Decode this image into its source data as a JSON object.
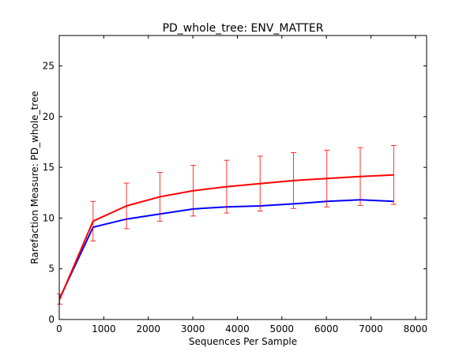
{
  "chart_data": {
    "type": "line",
    "title": "PD_whole_tree: ENV_MATTER",
    "xlabel": "Sequences Per Sample",
    "ylabel": "Rarefaction Measure: PD_whole_tree",
    "xlim": [
      0,
      8250
    ],
    "ylim": [
      0,
      28
    ],
    "xticks": [
      0,
      1000,
      2000,
      3000,
      4000,
      5000,
      6000,
      7000,
      8000
    ],
    "yticks": [
      0,
      5,
      10,
      15,
      20,
      25
    ],
    "grid": false,
    "legend": "none",
    "x": [
      10,
      760,
      1510,
      2260,
      3010,
      3760,
      4510,
      5260,
      6010,
      6760,
      7510
    ],
    "series": [
      {
        "color": "#ff0000",
        "values": [
          2.0,
          9.7,
          11.2,
          12.1,
          12.7,
          13.1,
          13.4,
          13.7,
          13.9,
          14.1,
          14.25
        ],
        "error": [
          0.5,
          1.95,
          2.25,
          2.4,
          2.5,
          2.6,
          2.7,
          2.75,
          2.8,
          2.85,
          2.9
        ]
      },
      {
        "color": "#0000ff",
        "values": [
          2.1,
          9.1,
          9.9,
          10.4,
          10.9,
          11.1,
          11.2,
          11.4,
          11.65,
          11.8,
          11.65
        ]
      }
    ]
  }
}
